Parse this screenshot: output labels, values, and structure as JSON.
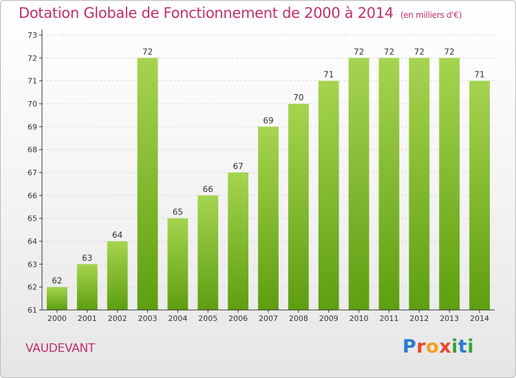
{
  "header": {
    "title": "Dotation Globale de Fonctionnement de 2000 à 2014",
    "unit": "(en milliers d'€)"
  },
  "commune": "VAUDEVANT",
  "logo": {
    "text": "Proxiti",
    "letters": [
      {
        "ch": "P",
        "color": "#2a7ad0"
      },
      {
        "ch": "r",
        "color": "#e8462a"
      },
      {
        "ch": "o",
        "color": "#f0a020"
      },
      {
        "ch": "x",
        "color": "#e8462a"
      },
      {
        "ch": "i",
        "color": "#3aa03a"
      },
      {
        "ch": "t",
        "color": "#2a7ad0"
      },
      {
        "ch": "i",
        "color": "#3aa03a"
      }
    ]
  },
  "colors": {
    "title": "#c0306a",
    "bar_light": "#a6d450",
    "bar_dark": "#5e9e10",
    "axis": "#333333",
    "grid": "#d8d8d8"
  },
  "chart_data": {
    "type": "bar",
    "title": "Dotation Globale de Fonctionnement de 2000 à 2014",
    "xlabel": "",
    "ylabel": "",
    "categories": [
      "2000",
      "2001",
      "2002",
      "2003",
      "2004",
      "2005",
      "2006",
      "2007",
      "2008",
      "2009",
      "2010",
      "2011",
      "2012",
      "2013",
      "2014"
    ],
    "values": [
      62,
      63,
      64,
      72,
      65,
      66,
      67,
      69,
      70,
      71,
      72,
      72,
      72,
      72,
      71
    ],
    "ylim": [
      61,
      73
    ],
    "yticks": [
      61,
      62,
      63,
      64,
      65,
      66,
      67,
      68,
      69,
      70,
      71,
      72,
      73
    ],
    "grid": true,
    "legend": "none"
  }
}
